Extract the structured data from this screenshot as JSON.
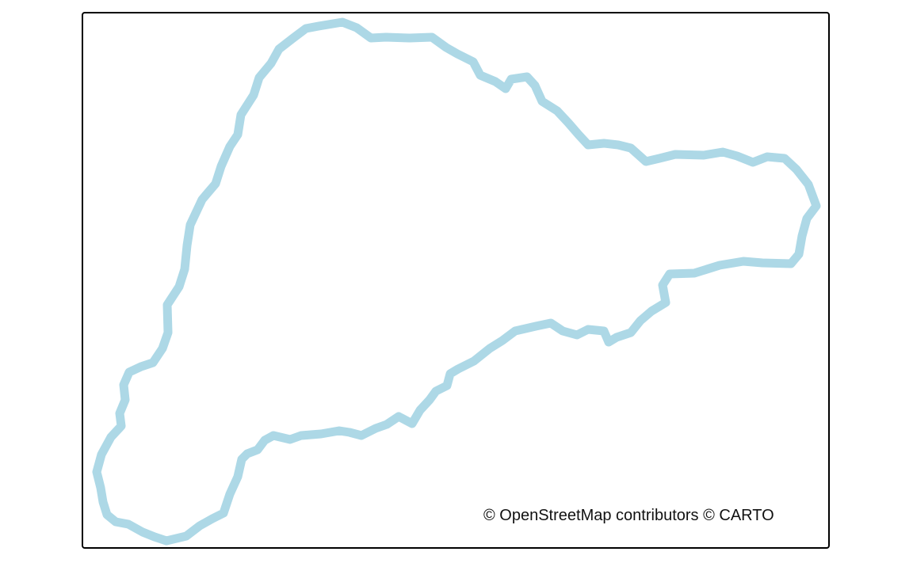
{
  "map": {
    "attribution": "© OpenStreetMap contributors © CARTO",
    "outline_color": "#add8e6",
    "frame_color": "#000000",
    "background_color": "#ffffff"
  }
}
